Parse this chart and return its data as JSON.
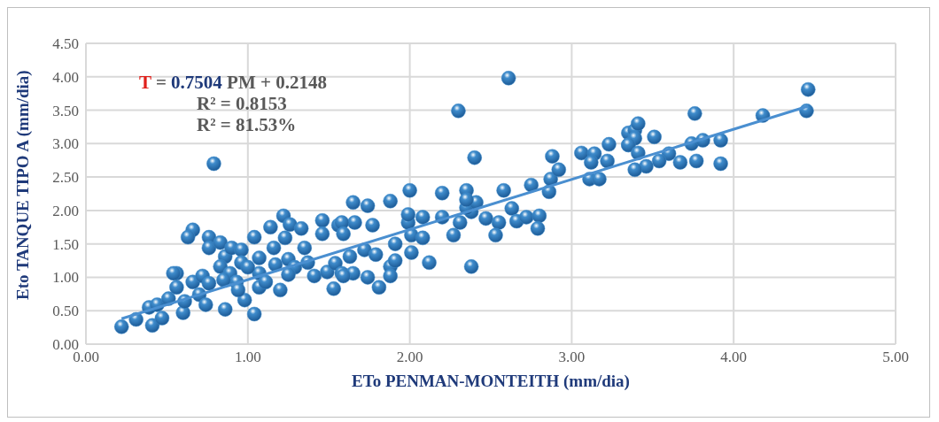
{
  "chart_data": {
    "type": "scatter",
    "xlabel": "ETo PENMAN-MONTEITH (mm/dia)",
    "ylabel": "Eto TANQUE TIPO A (mm/dia)",
    "annotations": [
      "T = 0.7504 PM + 0.2148",
      "R² = 0.8153",
      "R² = 81.53%"
    ],
    "xlim": [
      0,
      5
    ],
    "xticks": [
      {
        "value": 0,
        "label": "0.00"
      },
      {
        "value": 1,
        "label": "1.00"
      },
      {
        "value": 2,
        "label": "2.00"
      },
      {
        "value": 3,
        "label": "3.00"
      },
      {
        "value": 4,
        "label": "4.00"
      },
      {
        "value": 5,
        "label": "5.00"
      }
    ],
    "ylim": [
      0,
      4.5
    ],
    "yticks": [
      {
        "value": 0,
        "label": "0.00"
      },
      {
        "value": 0.5,
        "label": "0.50"
      },
      {
        "value": 1,
        "label": "1.00"
      },
      {
        "value": 1.5,
        "label": "1.50"
      },
      {
        "value": 2,
        "label": "2.00"
      },
      {
        "value": 2.5,
        "label": "2.50"
      },
      {
        "value": 3,
        "label": "3.00"
      },
      {
        "value": 3.5,
        "label": "3.50"
      },
      {
        "value": 4,
        "label": "4.00"
      },
      {
        "value": 4.5,
        "label": "4.50"
      }
    ],
    "grid": true,
    "marker": "circle",
    "series": [
      {
        "color": "#3f8ccc",
        "x": [
          0.22,
          0.31,
          0.39,
          0.44,
          0.41,
          0.47,
          0.51,
          0.56,
          0.56,
          0.54,
          0.6,
          0.61,
          0.66,
          0.66,
          0.63,
          0.7,
          0.74,
          0.76,
          0.76,
          0.72,
          0.76,
          0.83,
          0.86,
          0.83,
          0.86,
          0.89,
          0.9,
          0.96,
          0.96,
          0.93,
          0.98,
          0.94,
          1.04,
          1.04,
          1.07,
          1.07,
          1.07,
          1.11,
          1.14,
          1.17,
          1.16,
          1.2,
          1.22,
          1.26,
          1.33,
          1.23,
          1.25,
          1.29,
          1.25,
          1.35,
          1.37,
          1.46,
          1.46,
          1.41,
          1.49,
          1.53,
          1.54,
          1.58,
          1.63,
          1.0,
          0.85,
          0.79,
          1.56,
          1.65,
          1.77,
          1.99,
          1.88,
          1.65,
          1.74,
          1.66,
          1.59,
          1.58,
          1.59,
          1.72,
          1.79,
          1.74,
          1.81,
          1.88,
          1.91,
          1.91,
          2.01,
          2.01,
          2.08,
          2.08,
          2.12,
          2.38,
          2.2,
          2.27,
          2.31,
          2.38,
          2.35,
          2.47,
          2.55,
          2.53,
          2.0,
          1.88,
          2.2,
          2.35,
          2.41,
          2.35,
          2.63,
          2.66,
          2.72,
          2.8,
          2.79,
          2.58,
          2.75,
          2.86,
          2.87,
          2.92,
          2.4,
          2.88,
          3.06,
          3.14,
          3.12,
          3.22,
          3.23,
          3.11,
          3.17,
          2.3,
          2.61,
          3.35,
          3.39,
          3.35,
          3.39,
          3.41,
          3.51,
          3.35,
          3.41,
          3.6,
          3.54,
          3.67,
          3.77,
          3.74,
          3.81,
          3.92,
          3.92,
          3.46,
          3.39,
          3.76,
          4.18,
          4.45,
          4.46,
          1.99
        ],
        "values": [
          0.26,
          0.37,
          0.55,
          0.59,
          0.28,
          0.39,
          0.68,
          0.85,
          1.06,
          1.06,
          0.47,
          0.64,
          0.93,
          1.71,
          1.6,
          0.74,
          0.59,
          1.6,
          1.44,
          1.02,
          0.91,
          1.52,
          1.31,
          1.16,
          0.52,
          1.06,
          1.44,
          1.41,
          1.22,
          0.93,
          0.66,
          0.81,
          1.6,
          0.45,
          1.29,
          1.06,
          0.85,
          0.93,
          1.75,
          1.19,
          1.44,
          0.81,
          1.92,
          1.79,
          1.73,
          1.59,
          1.27,
          1.15,
          1.04,
          1.44,
          1.22,
          1.85,
          1.65,
          1.02,
          1.08,
          0.83,
          1.21,
          1.06,
          1.31,
          1.15,
          0.96,
          2.7,
          1.78,
          1.06,
          1.78,
          1.82,
          1.16,
          2.12,
          2.07,
          1.82,
          1.02,
          1.82,
          1.65,
          1.41,
          1.34,
          1.0,
          0.85,
          1.02,
          1.5,
          1.25,
          1.63,
          1.37,
          1.59,
          1.9,
          1.22,
          1.16,
          1.9,
          1.63,
          1.82,
          1.98,
          2.04,
          1.88,
          1.82,
          1.63,
          2.3,
          2.14,
          2.26,
          2.3,
          2.12,
          2.16,
          2.03,
          1.84,
          1.9,
          1.92,
          1.73,
          2.3,
          2.38,
          2.28,
          2.47,
          2.61,
          2.79,
          2.81,
          2.86,
          2.85,
          2.72,
          2.74,
          2.99,
          2.47,
          2.47,
          3.49,
          3.98,
          3.16,
          3.2,
          2.98,
          3.08,
          3.3,
          3.1,
          2.98,
          2.86,
          2.85,
          2.74,
          2.72,
          2.74,
          3.0,
          3.05,
          3.05,
          2.7,
          2.66,
          2.61,
          3.45,
          3.42,
          3.49,
          3.81,
          1.94
        ]
      },
      {
        "type": "line",
        "marker": "none",
        "color": "#4a8fd0",
        "x": [
          0.22,
          4.46
        ],
        "values": [
          0.38,
          3.56
        ]
      }
    ]
  }
}
